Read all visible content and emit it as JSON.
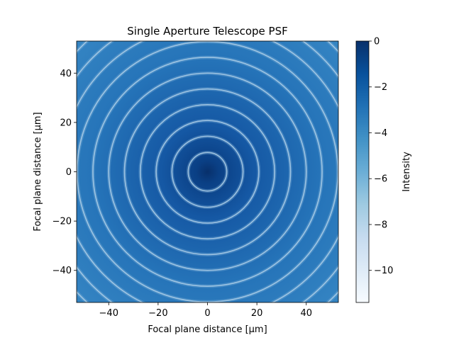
{
  "chart_data": {
    "type": "heatmap",
    "title": "Single Aperture Telescope PSF",
    "xlabel": "Focal plane distance [μm]",
    "ylabel": "Focal plane distance [μm]",
    "colorbar_label": "Intensity",
    "colormap": "Blues_r",
    "xlim": [
      -53,
      53
    ],
    "ylim": [
      -53,
      53
    ],
    "clim": [
      -11.4,
      0
    ],
    "x_ticks": [
      "−40",
      "−20",
      "0",
      "20",
      "40"
    ],
    "x_tick_values": [
      -40,
      -20,
      0,
      20,
      40
    ],
    "y_ticks": [
      "40",
      "20",
      "0",
      "−20",
      "−40"
    ],
    "y_tick_values": [
      40,
      20,
      0,
      -20,
      -40
    ],
    "colorbar_ticks": [
      "0",
      "−2",
      "−4",
      "−6",
      "−8",
      "−10"
    ],
    "colorbar_tick_values": [
      0,
      -2,
      -4,
      -6,
      -8,
      -10
    ],
    "ring_radii": [
      7.8,
      14.4,
      20.8,
      27.2,
      33.6,
      40.0,
      46.4,
      52.8,
      59.2,
      65.6,
      72.0
    ]
  }
}
